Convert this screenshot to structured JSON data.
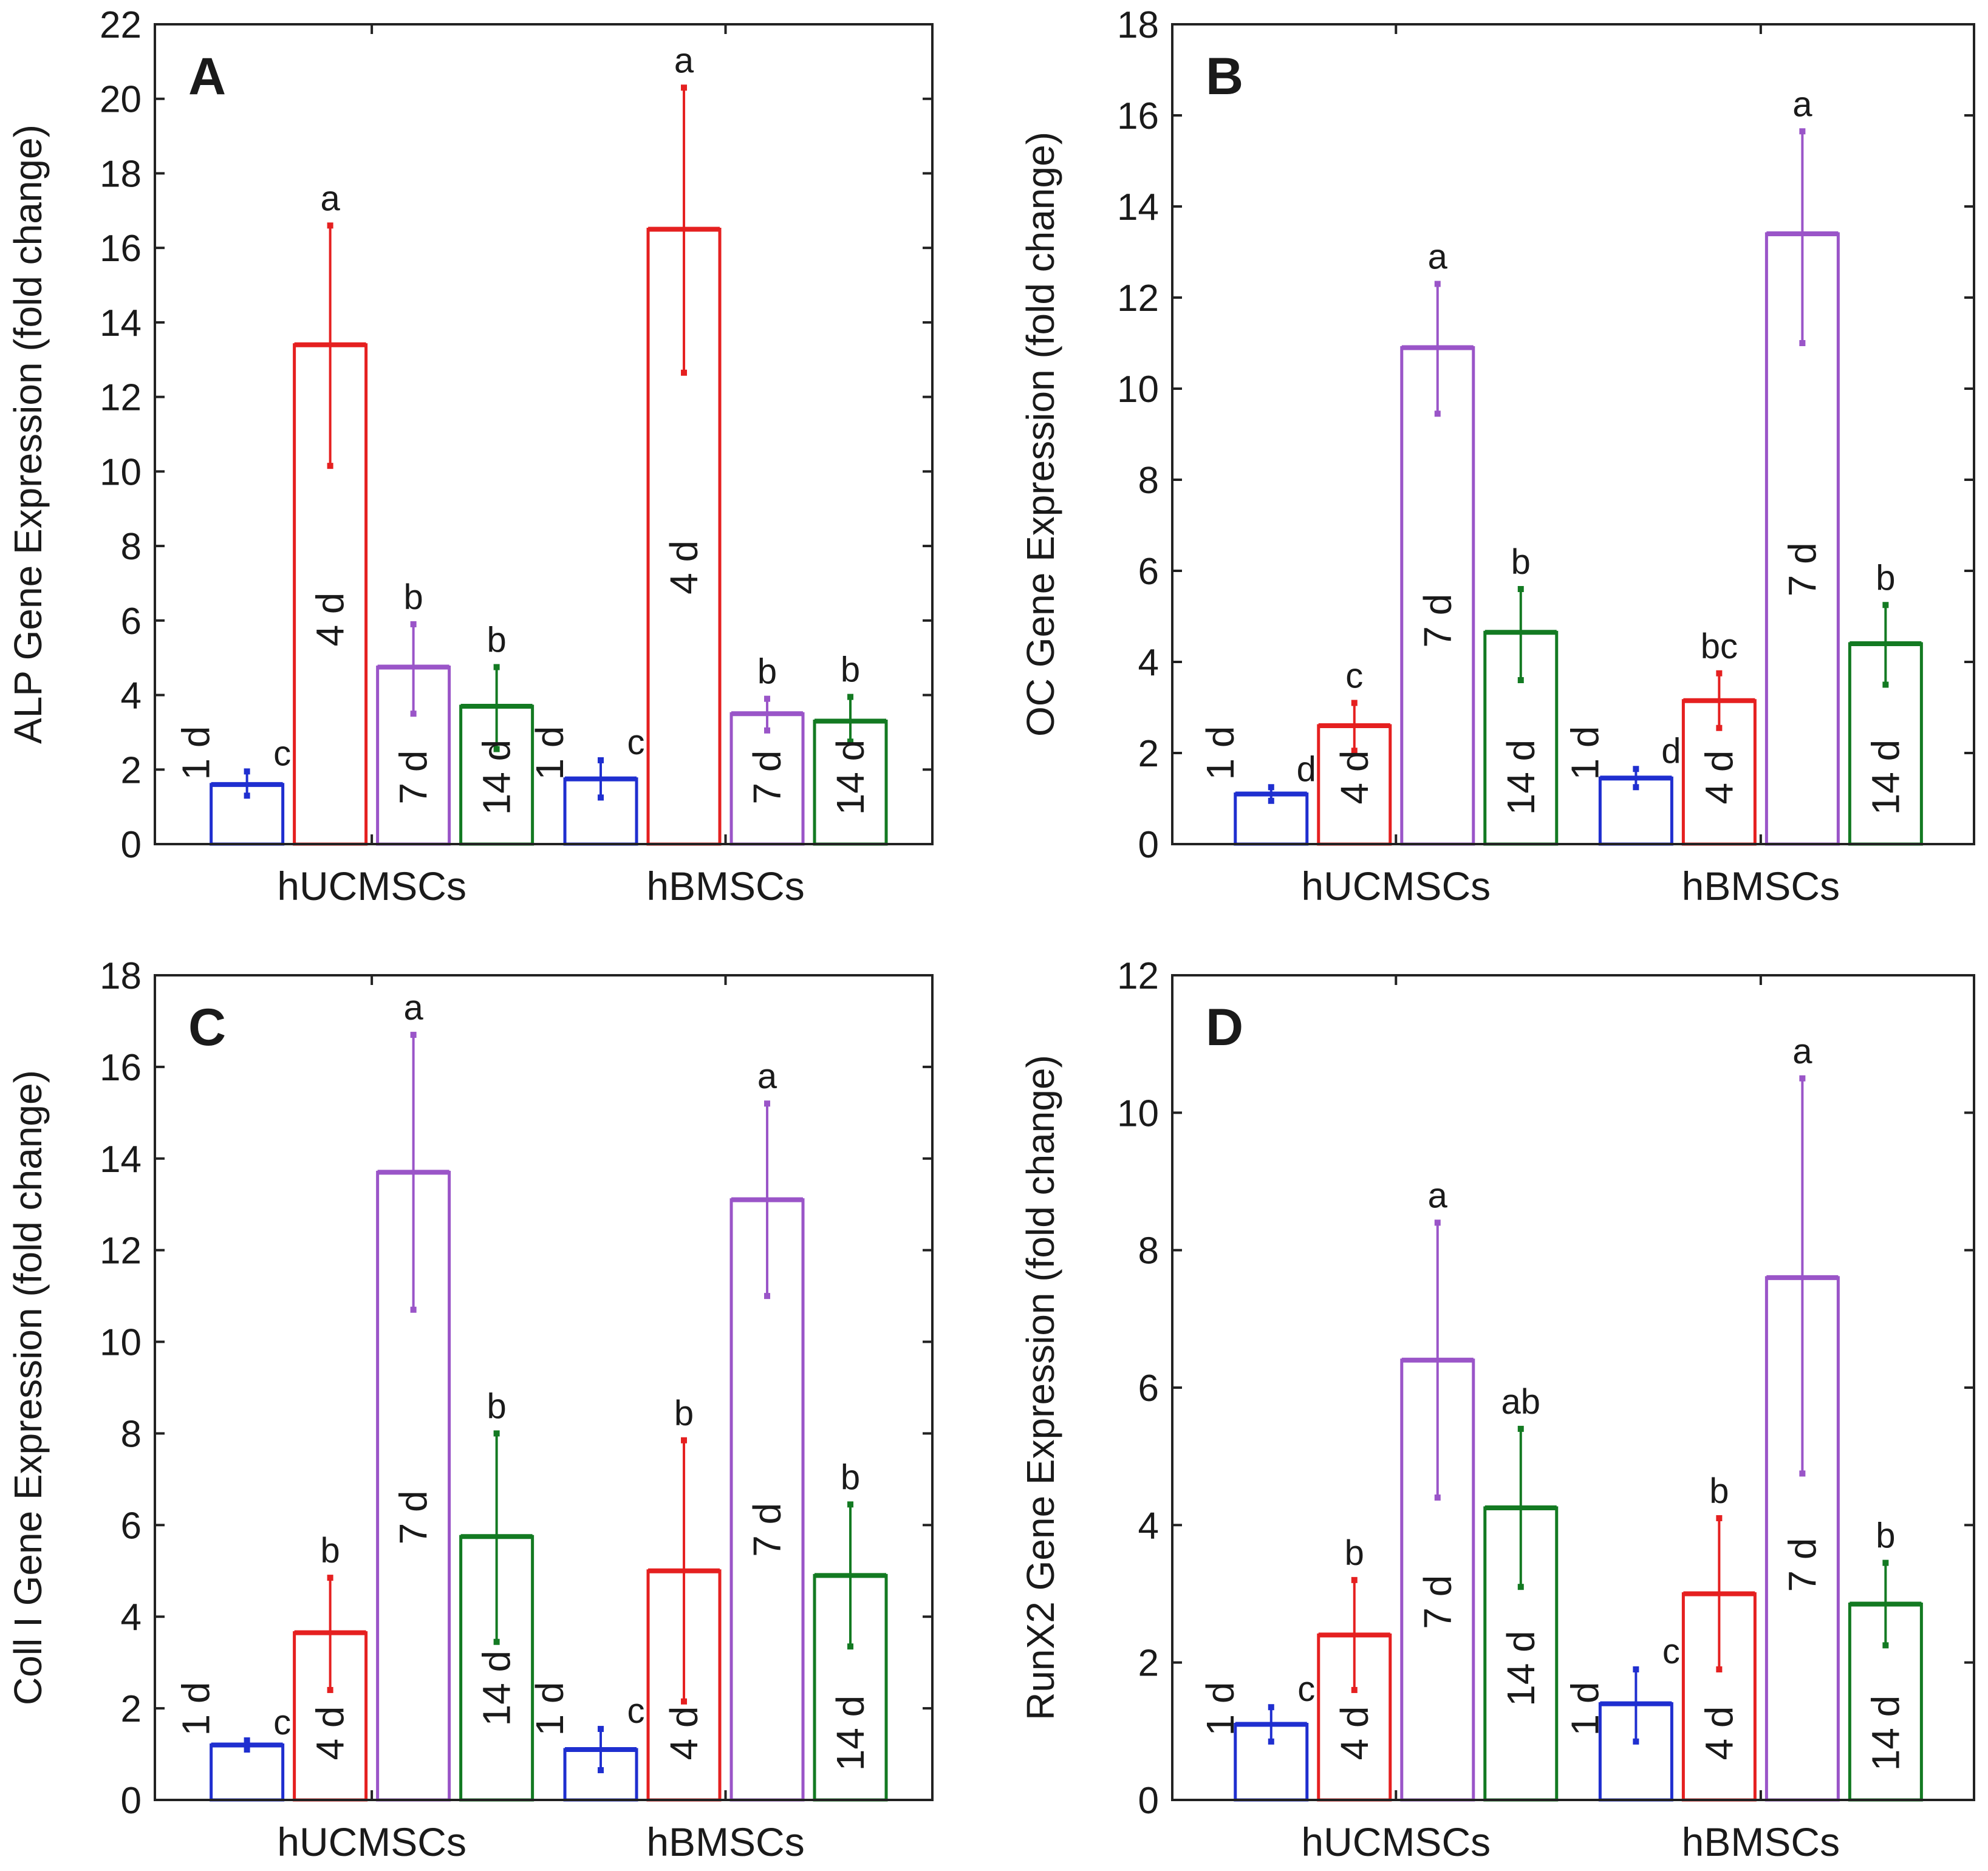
{
  "series_colors": {
    "1 d": "#1f2fd0",
    "4 d": "#e52020",
    "7 d": "#9a55c8",
    "14 d": "#137a22"
  },
  "chart_data": [
    {
      "type": "bar",
      "panel_letter": "A",
      "ylabel": "ALP Gene Expression (fold change)",
      "ylim": [
        0,
        22
      ],
      "yticks": [
        0,
        2,
        4,
        6,
        8,
        10,
        12,
        14,
        16,
        18,
        20,
        22
      ],
      "categories": [
        "hUCMSCs",
        "hBMSCs"
      ],
      "series": [
        {
          "name": "1 d",
          "values": [
            1.6,
            1.75
          ],
          "err_low": [
            1.3,
            1.25
          ],
          "err_high": [
            1.95,
            2.25
          ],
          "letters": [
            "c",
            "c"
          ]
        },
        {
          "name": "4 d",
          "values": [
            13.4,
            16.5
          ],
          "err_low": [
            10.15,
            12.65
          ],
          "err_high": [
            16.6,
            20.3
          ],
          "letters": [
            "a",
            "a"
          ]
        },
        {
          "name": "7 d",
          "values": [
            4.75,
            3.5
          ],
          "err_low": [
            3.5,
            3.05
          ],
          "err_high": [
            5.9,
            3.9
          ],
          "letters": [
            "b",
            "b"
          ]
        },
        {
          "name": "14 d",
          "values": [
            3.7,
            3.3
          ],
          "err_low": [
            2.55,
            2.75
          ],
          "err_high": [
            4.75,
            3.95
          ],
          "letters": [
            "b",
            "b"
          ]
        }
      ]
    },
    {
      "type": "bar",
      "panel_letter": "B",
      "ylabel": "OC Gene Expression (fold change)",
      "ylim": [
        0,
        18
      ],
      "yticks": [
        0,
        2,
        4,
        6,
        8,
        10,
        12,
        14,
        16,
        18
      ],
      "categories": [
        "hUCMSCs",
        "hBMSCs"
      ],
      "series": [
        {
          "name": "1 d",
          "values": [
            1.1,
            1.45
          ],
          "err_low": [
            0.95,
            1.25
          ],
          "err_high": [
            1.25,
            1.65
          ],
          "letters": [
            "d",
            "d"
          ]
        },
        {
          "name": "4 d",
          "values": [
            2.6,
            3.15
          ],
          "err_low": [
            2.05,
            2.55
          ],
          "err_high": [
            3.1,
            3.75
          ],
          "letters": [
            "c",
            "bc"
          ]
        },
        {
          "name": "7 d",
          "values": [
            10.9,
            13.4
          ],
          "err_low": [
            9.45,
            11.0
          ],
          "err_high": [
            12.3,
            15.65
          ],
          "letters": [
            "a",
            "a"
          ]
        },
        {
          "name": "14 d",
          "values": [
            4.65,
            4.4
          ],
          "err_low": [
            3.6,
            3.5
          ],
          "err_high": [
            5.6,
            5.25
          ],
          "letters": [
            "b",
            "b"
          ]
        }
      ]
    },
    {
      "type": "bar",
      "panel_letter": "C",
      "ylabel": "Coll I Gene Expression (fold change)",
      "ylim": [
        0,
        18
      ],
      "yticks": [
        0,
        2,
        4,
        6,
        8,
        10,
        12,
        14,
        16,
        18
      ],
      "categories": [
        "hUCMSCs",
        "hBMSCs"
      ],
      "series": [
        {
          "name": "1 d",
          "values": [
            1.2,
            1.1
          ],
          "err_low": [
            1.1,
            0.65
          ],
          "err_high": [
            1.3,
            1.55
          ],
          "letters": [
            "c",
            "c"
          ]
        },
        {
          "name": "4 d",
          "values": [
            3.65,
            5.0
          ],
          "err_low": [
            2.4,
            2.15
          ],
          "err_high": [
            4.85,
            7.85
          ],
          "letters": [
            "b",
            "b"
          ]
        },
        {
          "name": "7 d",
          "values": [
            13.7,
            13.1
          ],
          "err_low": [
            10.7,
            11.0
          ],
          "err_high": [
            16.7,
            15.2
          ],
          "letters": [
            "a",
            "a"
          ]
        },
        {
          "name": "14 d",
          "values": [
            5.75,
            4.9
          ],
          "err_low": [
            3.45,
            3.35
          ],
          "err_high": [
            8.0,
            6.45
          ],
          "letters": [
            "b",
            "b"
          ]
        }
      ]
    },
    {
      "type": "bar",
      "panel_letter": "D",
      "ylabel": "RunX2 Gene Expression (fold change)",
      "ylim": [
        0,
        12
      ],
      "yticks": [
        0,
        2,
        4,
        6,
        8,
        10,
        12
      ],
      "categories": [
        "hUCMSCs",
        "hBMSCs"
      ],
      "series": [
        {
          "name": "1 d",
          "values": [
            1.1,
            1.4
          ],
          "err_low": [
            0.85,
            0.85
          ],
          "err_high": [
            1.35,
            1.9
          ],
          "letters": [
            "c",
            "c"
          ]
        },
        {
          "name": "4 d",
          "values": [
            2.4,
            3.0
          ],
          "err_low": [
            1.6,
            1.9
          ],
          "err_high": [
            3.2,
            4.1
          ],
          "letters": [
            "b",
            "b"
          ]
        },
        {
          "name": "7 d",
          "values": [
            6.4,
            7.6
          ],
          "err_low": [
            4.4,
            4.75
          ],
          "err_high": [
            8.4,
            10.5
          ],
          "letters": [
            "a",
            "a"
          ]
        },
        {
          "name": "14 d",
          "values": [
            4.25,
            2.85
          ],
          "err_low": [
            3.1,
            2.25
          ],
          "err_high": [
            5.4,
            3.45
          ],
          "letters": [
            "ab",
            "b"
          ]
        }
      ]
    }
  ]
}
